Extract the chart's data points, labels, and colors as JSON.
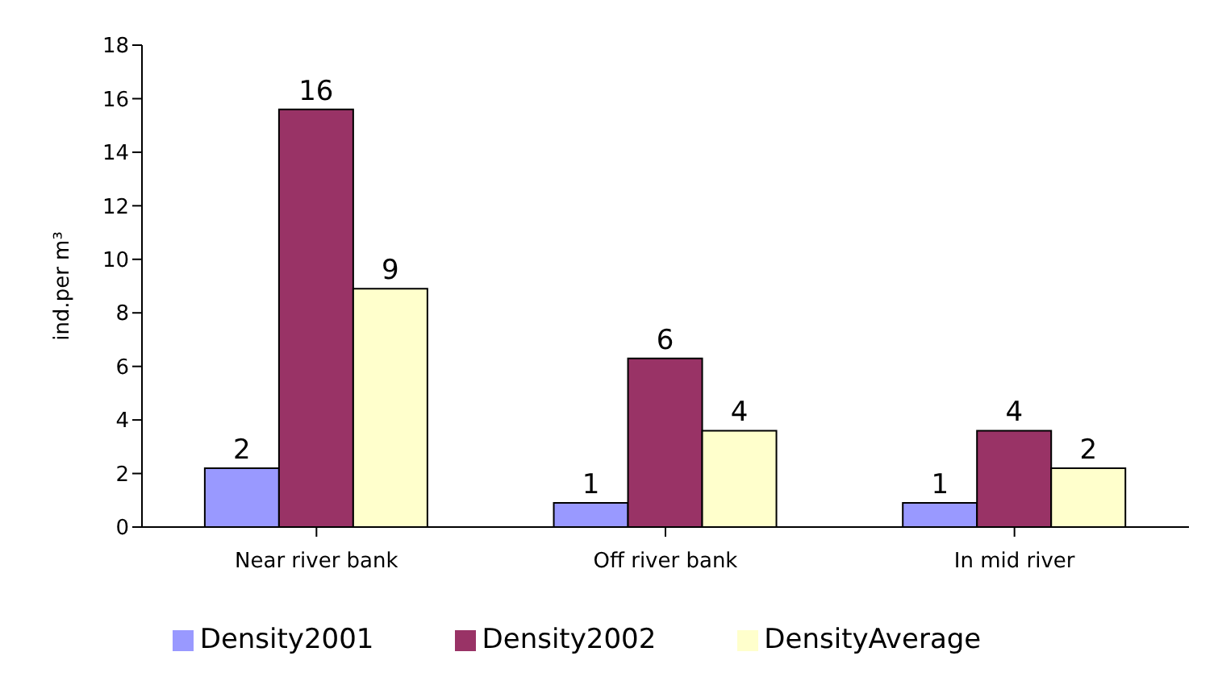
{
  "chart_data": {
    "type": "bar",
    "ylabel": "ind.per m³",
    "categories": [
      "Near river bank",
      "Off river bank",
      "In mid river"
    ],
    "series": [
      {
        "name": "Density2001",
        "color": "#9999ff",
        "values": [
          2.2,
          0.9,
          0.9
        ],
        "value_labels": [
          "2",
          "1",
          "1"
        ]
      },
      {
        "name": "Density2002",
        "color": "#993366",
        "values": [
          15.6,
          6.3,
          3.6
        ],
        "value_labels": [
          "16",
          "6",
          "4"
        ]
      },
      {
        "name": "DensityAverage",
        "color": "#ffffcc",
        "values": [
          8.9,
          3.6,
          2.2
        ],
        "value_labels": [
          "9",
          "4",
          "2"
        ]
      }
    ],
    "ylim": [
      0,
      18
    ],
    "yticks": [
      0,
      2,
      4,
      6,
      8,
      10,
      12,
      14,
      16,
      18
    ],
    "grid": false,
    "legend": "bottom"
  }
}
